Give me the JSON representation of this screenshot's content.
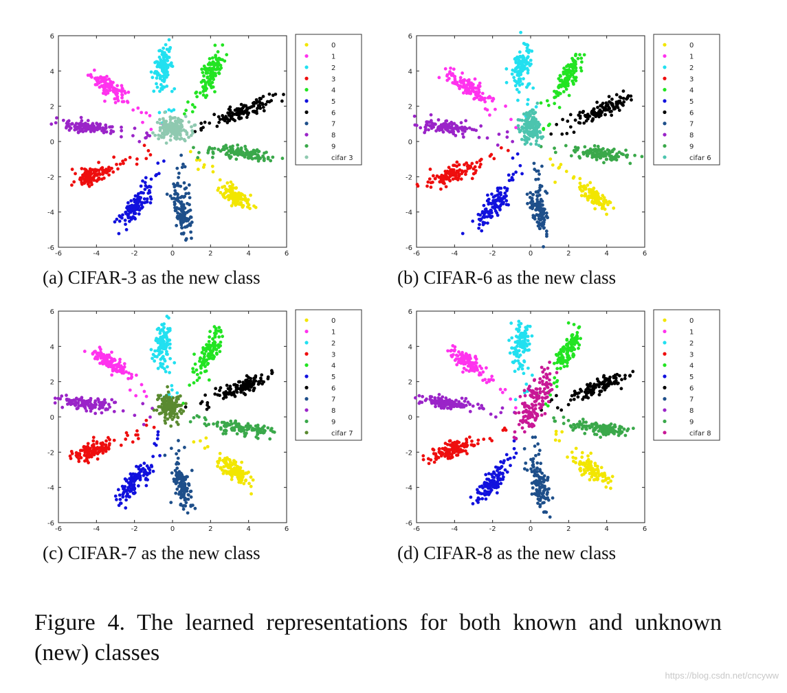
{
  "figure": {
    "caption": "Figure 4. The learned representations for both known and unknown (new) classes",
    "watermark": "https://blog.csdn.net/cncyww"
  },
  "chart_data": [
    {
      "type": "scatter",
      "caption": "(a) CIFAR-3 as the new class",
      "new_class_label": "cifar 3",
      "new_class_color": "#8fc9b0",
      "new_class_center": [
        0.0,
        0.75
      ],
      "new_class_spread": [
        0.32,
        0.45
      ],
      "new_class_angle": 80,
      "xlim": [
        -6,
        6
      ],
      "ylim": [
        -6,
        6
      ],
      "xticks": [
        "-6",
        "-4",
        "-2",
        "0",
        "2",
        "4",
        "6"
      ],
      "yticks": [
        "6",
        "4",
        "2",
        "0",
        "-2",
        "-4",
        "-6"
      ],
      "legend": [
        "0",
        "1",
        "2",
        "3",
        "4",
        "5",
        "6",
        "7",
        "8",
        "9",
        "cifar 3"
      ]
    },
    {
      "type": "scatter",
      "caption": "(b) CIFAR-6 as the new class",
      "new_class_label": "cifar 6",
      "new_class_color": "#4cc4ae",
      "new_class_center": [
        0.0,
        0.8
      ],
      "new_class_spread": [
        0.3,
        0.5
      ],
      "new_class_angle": 0,
      "xlim": [
        -6,
        6
      ],
      "ylim": [
        -6,
        6
      ],
      "xticks": [
        "-6",
        "-4",
        "-2",
        "0",
        "2",
        "4",
        "6"
      ],
      "yticks": [
        "6",
        "4",
        "2",
        "0",
        "-2",
        "-4",
        "-6"
      ],
      "legend": [
        "0",
        "1",
        "2",
        "3",
        "4",
        "5",
        "6",
        "7",
        "8",
        "9",
        "cifar 6"
      ]
    },
    {
      "type": "scatter",
      "caption": "(c) CIFAR-7 as the new class",
      "new_class_label": "cifar 7",
      "new_class_color": "#5a8a30",
      "new_class_center": [
        -0.1,
        0.65
      ],
      "new_class_spread": [
        0.28,
        0.4
      ],
      "new_class_angle": 0,
      "xlim": [
        -6,
        6
      ],
      "ylim": [
        -6,
        6
      ],
      "xticks": [
        "-6",
        "-4",
        "-2",
        "0",
        "2",
        "4",
        "6"
      ],
      "yticks": [
        "6",
        "4",
        "2",
        "0",
        "-2",
        "-4",
        "-6"
      ],
      "legend": [
        "0",
        "1",
        "2",
        "3",
        "4",
        "5",
        "6",
        "7",
        "8",
        "9",
        "cifar 7"
      ]
    },
    {
      "type": "scatter",
      "caption": "(d) CIFAR-8 as the new class",
      "new_class_label": "cifar 8",
      "new_class_color": "#c81896",
      "new_class_center": [
        0.2,
        0.8
      ],
      "new_class_spread": [
        0.95,
        0.35
      ],
      "new_class_angle": 70,
      "xlim": [
        -6,
        6
      ],
      "ylim": [
        -6,
        6
      ],
      "xticks": [
        "-6",
        "-4",
        "-2",
        "0",
        "2",
        "4",
        "6"
      ],
      "yticks": [
        "6",
        "4",
        "2",
        "0",
        "-2",
        "-4",
        "-6"
      ],
      "legend": [
        "0",
        "1",
        "2",
        "3",
        "4",
        "5",
        "6",
        "7",
        "8",
        "9",
        "cifar 8"
      ]
    }
  ],
  "known_classes": [
    {
      "label": "0",
      "color": "#f2e600",
      "center": [
        3.3,
        -3.1
      ],
      "spread": [
        0.5,
        0.22
      ],
      "angle": -40
    },
    {
      "label": "1",
      "color": "#ff33ee",
      "center": [
        -3.3,
        3.1
      ],
      "spread": [
        0.6,
        0.2
      ],
      "angle": -35
    },
    {
      "label": "2",
      "color": "#22e0f0",
      "center": [
        -0.5,
        4.2
      ],
      "spread": [
        0.6,
        0.22
      ],
      "angle": 80
    },
    {
      "label": "3",
      "color": "#ee0e0e",
      "center": [
        -4.2,
        -1.9
      ],
      "spread": [
        0.6,
        0.22
      ],
      "angle": 20
    },
    {
      "label": "4",
      "color": "#22e422",
      "center": [
        2.0,
        3.8
      ],
      "spread": [
        0.65,
        0.22
      ],
      "angle": 65
    },
    {
      "label": "5",
      "color": "#1111dd",
      "center": [
        -2.0,
        -3.7
      ],
      "spread": [
        0.65,
        0.22
      ],
      "angle": 55
    },
    {
      "label": "6",
      "color": "#000000",
      "center": [
        3.8,
        1.8
      ],
      "spread": [
        0.75,
        0.2
      ],
      "angle": 25
    },
    {
      "label": "7",
      "color": "#1e4f8a",
      "center": [
        0.5,
        -4.0
      ],
      "spread": [
        0.7,
        0.22
      ],
      "angle": -80
    },
    {
      "label": "8",
      "color": "#9a24c8",
      "center": [
        -4.5,
        0.8
      ],
      "spread": [
        0.65,
        0.17
      ],
      "angle": -8
    },
    {
      "label": "9",
      "color": "#3aa84a",
      "center": [
        3.8,
        -0.7
      ],
      "spread": [
        0.75,
        0.17
      ],
      "angle": -8
    }
  ]
}
